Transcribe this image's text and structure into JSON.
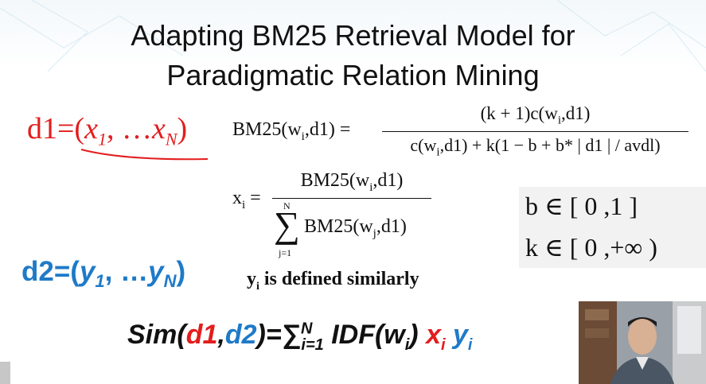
{
  "slide": {
    "title_line1": "Adapting BM25 Retrieval Model for",
    "title_line2": "Paradigmatic Relation Mining"
  },
  "d1": {
    "prefix": "d1=(",
    "x1": "x",
    "x1_sub": "1",
    "middle": ", …",
    "xN": "x",
    "xN_sub": "N",
    "suffix": ")"
  },
  "d2": {
    "prefix": "d2=(",
    "y1": "y",
    "y1_sub": "1",
    "middle": ", …",
    "yN": "y",
    "yN_sub": "N",
    "suffix": ")"
  },
  "bm25": {
    "lhs": "BM25(w",
    "lhs_sub": "i",
    "lhs_tail": ",d1) =",
    "numerator": "(k + 1)c(w",
    "numerator_sub": "i",
    "numerator_tail": ",d1)",
    "denominator": "c(w",
    "denominator_sub": "i",
    "denominator_tail": ",d1) + k(1 − b + b* | d1 | / avdl)"
  },
  "xi": {
    "lhs": "x",
    "lhs_sub": "i",
    "equals": "=",
    "numerator": "BM25(w",
    "numerator_sub": "i",
    "numerator_tail": ",d1)",
    "sum_upper": "N",
    "sum_symbol": "∑",
    "sum_lower": "j=1",
    "denominator": "BM25(w",
    "denominator_sub": "j",
    "denominator_tail": ",d1)"
  },
  "yi_note": {
    "var": "y",
    "var_sub": "i",
    "text": " is defined similarly"
  },
  "ranges": {
    "b": "b  ∈  [ 0 ,1 ]",
    "k": "k  ∈  [ 0 ,+∞   )"
  },
  "sim": {
    "start": "Sim(",
    "d1": "d1",
    "comma": ",",
    "d2": "d2",
    "eq": ")=∑",
    "sum_lower": "i=1",
    "sum_upper": "N",
    "idf": " IDF(w",
    "idf_sub": "i",
    "idf_end": ") ",
    "x": "x",
    "x_sub": "i",
    "y": " y",
    "y_sub": "i"
  },
  "colors": {
    "d1": "#e31d1d",
    "d2": "#1f7ac8"
  },
  "icons": {
    "webcam": "presenter-video-feed"
  }
}
